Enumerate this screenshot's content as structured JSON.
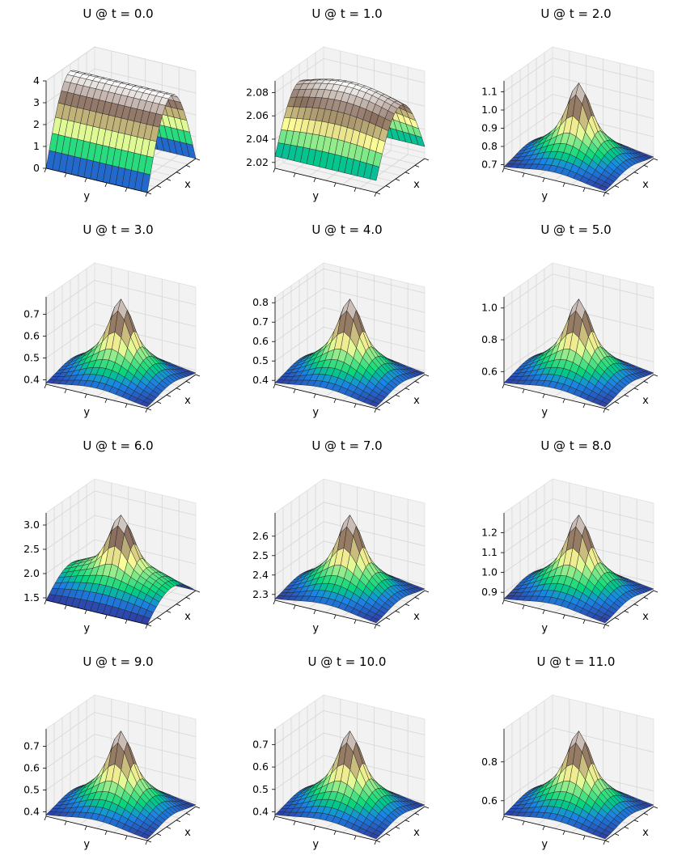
{
  "figure": {
    "background": "#ffffff",
    "colormap": "terrain",
    "colormap_stops": [
      "#333399",
      "#1a85e6",
      "#00d47a",
      "#fefe98",
      "#8a6e5e",
      "#ffffff"
    ]
  },
  "chart_data": [
    {
      "type": "surface",
      "title": "U @ t = 0.0",
      "xlabel": "x",
      "ylabel": "y",
      "zticks": [
        "0",
        "1",
        "2",
        "3",
        "4"
      ],
      "zlim": [
        0,
        4
      ],
      "shape": "ridge",
      "grid": true
    },
    {
      "type": "surface",
      "title": "U @ t = 1.0",
      "xlabel": "x",
      "ylabel": "y",
      "zticks": [
        "2.02",
        "2.04",
        "2.06",
        "2.08"
      ],
      "zlim": [
        2.015,
        2.09
      ],
      "shape": "broad",
      "grid": true
    },
    {
      "type": "surface",
      "title": "U @ t = 2.0",
      "xlabel": "x",
      "ylabel": "y",
      "zticks": [
        "0.7",
        "0.8",
        "0.9",
        "1.0",
        "1.1"
      ],
      "zlim": [
        0.68,
        1.16
      ],
      "shape": "peak",
      "grid": true
    },
    {
      "type": "surface",
      "title": "U @ t = 3.0",
      "xlabel": "x",
      "ylabel": "y",
      "zticks": [
        "0.4",
        "0.5",
        "0.6",
        "0.7"
      ],
      "zlim": [
        0.38,
        0.78
      ],
      "shape": "peak",
      "grid": true
    },
    {
      "type": "surface",
      "title": "U @ t = 4.0",
      "xlabel": "x",
      "ylabel": "y",
      "zticks": [
        "0.4",
        "0.5",
        "0.6",
        "0.7",
        "0.8"
      ],
      "zlim": [
        0.38,
        0.83
      ],
      "shape": "peak",
      "grid": true
    },
    {
      "type": "surface",
      "title": "U @ t = 5.0",
      "xlabel": "x",
      "ylabel": "y",
      "zticks": [
        "0.6",
        "0.8",
        "1.0"
      ],
      "zlim": [
        0.52,
        1.07
      ],
      "shape": "peak",
      "grid": true
    },
    {
      "type": "surface",
      "title": "U @ t = 6.0",
      "xlabel": "x",
      "ylabel": "y",
      "zticks": [
        "1.5",
        "2.0",
        "2.5",
        "3.0"
      ],
      "zlim": [
        1.45,
        3.25
      ],
      "shape": "wave",
      "grid": true
    },
    {
      "type": "surface",
      "title": "U @ t = 7.0",
      "xlabel": "x",
      "ylabel": "y",
      "zticks": [
        "2.3",
        "2.4",
        "2.5",
        "2.6"
      ],
      "zlim": [
        2.27,
        2.72
      ],
      "shape": "peak",
      "grid": true
    },
    {
      "type": "surface",
      "title": "U @ t = 8.0",
      "xlabel": "x",
      "ylabel": "y",
      "zticks": [
        "0.9",
        "1.0",
        "1.1",
        "1.2"
      ],
      "zlim": [
        0.86,
        1.3
      ],
      "shape": "peak",
      "grid": true
    },
    {
      "type": "surface",
      "title": "U @ t = 9.0",
      "xlabel": "x",
      "ylabel": "y",
      "zticks": [
        "0.4",
        "0.5",
        "0.6",
        "0.7"
      ],
      "zlim": [
        0.38,
        0.78
      ],
      "shape": "peak",
      "grid": true
    },
    {
      "type": "surface",
      "title": "U @ t = 10.0",
      "xlabel": "x",
      "ylabel": "y",
      "zticks": [
        "0.4",
        "0.5",
        "0.6",
        "0.7"
      ],
      "zlim": [
        0.38,
        0.77
      ],
      "shape": "peak",
      "grid": true
    },
    {
      "type": "surface",
      "title": "U @ t = 11.0",
      "xlabel": "x",
      "ylabel": "y",
      "zticks": [
        "0.6",
        "0.8"
      ],
      "zlim": [
        0.52,
        0.97
      ],
      "shape": "peak",
      "grid": true
    }
  ]
}
